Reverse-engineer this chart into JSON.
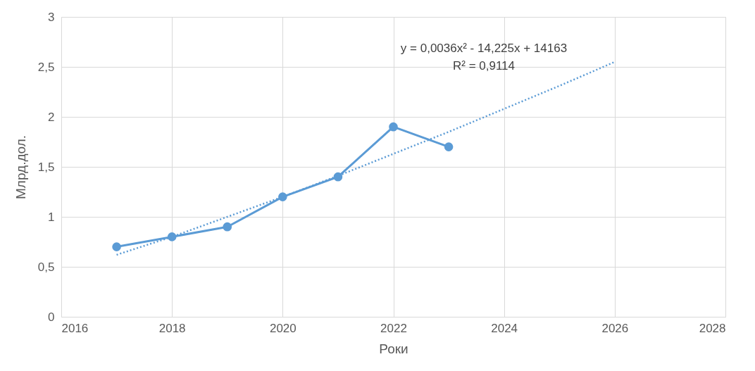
{
  "chart_data": {
    "type": "line",
    "xlabel": "Роки",
    "ylabel": "Млрд.дол.",
    "xlim": [
      2016,
      2028
    ],
    "xticks": [
      2016,
      2018,
      2020,
      2022,
      2024,
      2026,
      2028
    ],
    "ylim": [
      0,
      3
    ],
    "yticks": [
      0,
      {
        "value": 0.5,
        "label": "0,5"
      },
      1,
      {
        "value": 1.5,
        "label": "1,5"
      },
      2,
      {
        "value": 2.5,
        "label": "2,5"
      },
      3
    ],
    "grid": true,
    "series": [
      {
        "color": "#5b9bd5",
        "marker": "circle",
        "line_style": "solid",
        "x": [
          2017,
          2018,
          2019,
          2020,
          2021,
          2022,
          2023
        ],
        "values": [
          0.7,
          0.8,
          0.9,
          1.2,
          1.4,
          1.9,
          1.7
        ]
      },
      {
        "color": "#5b9bd5",
        "marker": "none",
        "line_style": "dotted",
        "x": [
          2017,
          2018,
          2019,
          2020,
          2021,
          2022,
          2023,
          2024,
          2025,
          2026
        ],
        "values": [
          0.62,
          0.8,
          1.0,
          1.2,
          1.41,
          1.63,
          1.85,
          2.08,
          2.31,
          2.55
        ]
      }
    ],
    "annotations": [
      "y = 0,0036x² - 14,225x + 14163",
      "R² = 0,9114"
    ]
  }
}
